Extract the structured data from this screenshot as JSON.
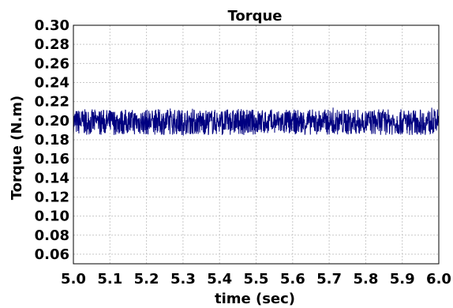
{
  "chart_data": {
    "type": "line",
    "title": "Torque",
    "xlabel": "time (sec)",
    "ylabel": "Torque (N.m)",
    "xlim": [
      5.0,
      6.0
    ],
    "ylim": [
      0.05,
      0.3
    ],
    "xticks": [
      "5.0",
      "5.1",
      "5.2",
      "5.3",
      "5.4",
      "5.5",
      "5.6",
      "5.7",
      "5.8",
      "5.9",
      "6.0"
    ],
    "yticks": [
      "0.06",
      "0.08",
      "0.10",
      "0.12",
      "0.14",
      "0.16",
      "0.18",
      "0.20",
      "0.22",
      "0.24",
      "0.26",
      "0.28",
      "0.30"
    ],
    "grid": true,
    "series": [
      {
        "color": "#000080",
        "mean": 0.199,
        "band": [
          0.185,
          0.212
        ],
        "x": [
          5.0,
          6.0
        ]
      }
    ]
  }
}
